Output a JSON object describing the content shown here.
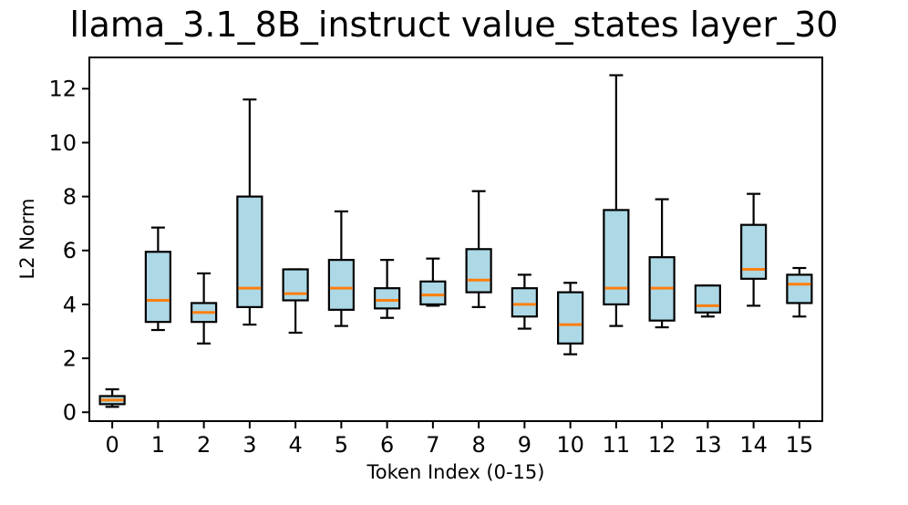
{
  "chart_data": {
    "type": "boxplot",
    "title": "llama_3.1_8B_instruct value_states layer_30",
    "xlabel": "Token Index (0-15)",
    "ylabel": "L2 Norm",
    "categories": [
      "0",
      "1",
      "2",
      "3",
      "4",
      "5",
      "6",
      "7",
      "8",
      "9",
      "10",
      "11",
      "12",
      "13",
      "14",
      "15"
    ],
    "yticks": [
      0,
      2,
      4,
      6,
      8,
      10,
      12
    ],
    "ylim": [
      -0.33,
      13.16
    ],
    "grid": false,
    "legend": "none",
    "colors": {
      "box_fill": "#ADD8E6",
      "box_edge": "#000000",
      "whisker": "#000000",
      "median": "#FF7F0E",
      "background": "#FFFFFF"
    },
    "series": [
      {
        "token": "0",
        "whislo": 0.2,
        "q1": 0.3,
        "med": 0.45,
        "q3": 0.6,
        "whishi": 0.85
      },
      {
        "token": "1",
        "whislo": 3.05,
        "q1": 3.35,
        "med": 4.15,
        "q3": 5.95,
        "whishi": 6.85
      },
      {
        "token": "2",
        "whislo": 2.55,
        "q1": 3.35,
        "med": 3.7,
        "q3": 4.05,
        "whishi": 5.15
      },
      {
        "token": "3",
        "whislo": 3.25,
        "q1": 3.9,
        "med": 4.6,
        "q3": 8.0,
        "whishi": 11.6
      },
      {
        "token": "4",
        "whislo": 2.95,
        "q1": 4.15,
        "med": 4.4,
        "q3": 5.3,
        "whishi": 5.3
      },
      {
        "token": "5",
        "whislo": 3.2,
        "q1": 3.8,
        "med": 4.6,
        "q3": 5.65,
        "whishi": 7.45
      },
      {
        "token": "6",
        "whislo": 3.5,
        "q1": 3.85,
        "med": 4.15,
        "q3": 4.6,
        "whishi": 5.65
      },
      {
        "token": "7",
        "whislo": 3.95,
        "q1": 4.0,
        "med": 4.35,
        "q3": 4.85,
        "whishi": 5.7
      },
      {
        "token": "8",
        "whislo": 3.9,
        "q1": 4.45,
        "med": 4.9,
        "q3": 6.05,
        "whishi": 8.2
      },
      {
        "token": "9",
        "whislo": 3.1,
        "q1": 3.55,
        "med": 4.0,
        "q3": 4.6,
        "whishi": 5.1
      },
      {
        "token": "10",
        "whislo": 2.15,
        "q1": 2.55,
        "med": 3.25,
        "q3": 4.45,
        "whishi": 4.8
      },
      {
        "token": "11",
        "whislo": 3.2,
        "q1": 4.0,
        "med": 4.6,
        "q3": 7.5,
        "whishi": 12.5
      },
      {
        "token": "12",
        "whislo": 3.15,
        "q1": 3.4,
        "med": 4.6,
        "q3": 5.75,
        "whishi": 7.9
      },
      {
        "token": "13",
        "whislo": 3.55,
        "q1": 3.7,
        "med": 3.95,
        "q3": 4.7,
        "whishi": 4.7
      },
      {
        "token": "14",
        "whislo": 3.95,
        "q1": 4.95,
        "med": 5.3,
        "q3": 6.95,
        "whishi": 8.1
      },
      {
        "token": "15",
        "whislo": 3.55,
        "q1": 4.05,
        "med": 4.75,
        "q3": 5.1,
        "whishi": 5.35
      }
    ]
  }
}
